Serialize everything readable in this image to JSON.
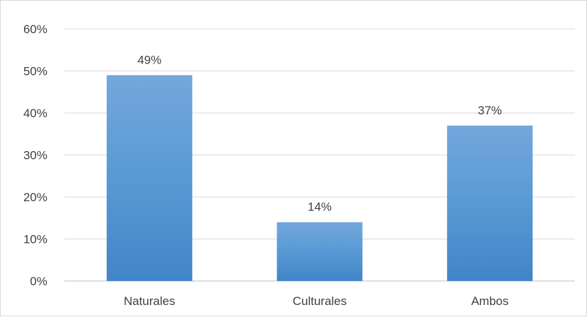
{
  "chart_data": {
    "type": "bar",
    "categories": [
      "Naturales",
      "Culturales",
      "Ambos"
    ],
    "values": [
      49,
      14,
      37
    ],
    "data_labels": [
      "49%",
      "14%",
      "37%"
    ],
    "ylim": [
      0,
      60
    ],
    "y_ticks": [
      0,
      10,
      20,
      30,
      40,
      50,
      60
    ],
    "y_tick_labels": [
      "0%",
      "10%",
      "20%",
      "30%",
      "40%",
      "50%",
      "60%"
    ],
    "title": "",
    "xlabel": "",
    "ylabel": "",
    "grid": true,
    "legend": "none",
    "colors": {
      "bar_top": "#74a7dc",
      "bar_mid": "#5b9bd5",
      "bar_bottom": "#4284c8",
      "grid": "#d9d9d9",
      "axis": "#bfbfbf",
      "text": "#404040"
    }
  }
}
